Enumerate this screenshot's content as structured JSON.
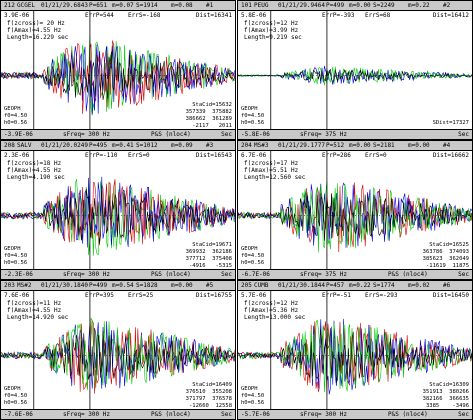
{
  "panels": [
    {
      "header": {
        "index": "212",
        "station": "GCGEL",
        "time": "01/21/29.6843",
        "p": "P=651",
        "m": "m=0.07",
        "s": "S=1914",
        "mag": "m=0.08",
        "num": "#1"
      },
      "amp_top": "3.9E-06",
      "err_p": "ErrP=544",
      "err_s": "ErrS=-168",
      "dist": "Dist=16341",
      "fz": "f(zcross)= 20 Hz",
      "fa": "f(Amax)=4.55 Hz",
      "len": "Length=16.229 sec",
      "geoph": "GEOPH",
      "f0": "f0=4.50",
      "h0": "h0=0.56",
      "stat_label": "StaCid=15632",
      "stat_rows": [
        "357339  375882",
        "386662  361289",
        "-2117   2011"
      ],
      "amp_bottom": "-3.9E-06",
      "sfreq": "sFreq= 300 Hz",
      "ps": "P&S (nloc4)",
      "sec": "Sec",
      "colors": [
        "#00cc00",
        "#d40000",
        "#0000dd",
        "#000000"
      ],
      "amplitude": 0.85
    },
    {
      "header": {
        "index": "101",
        "station": "PEUG",
        "time": "01/21/29.9464",
        "p": "P=499",
        "m": "m=0.00",
        "s": "S=2249",
        "mag": "m=0.22",
        "num": "#2"
      },
      "amp_top": "5.8E-06",
      "err_p": "ErrP=-393",
      "err_s": "ErrS=68",
      "dist": "Dist=16412",
      "fz": "f(zcross)=12 Hz",
      "fa": "f(Amax)=3.99 Hz",
      "len": "Length=9.219 sec",
      "geoph": "GEOPH",
      "f0": "f0=4.50",
      "h0": "h0=0.56",
      "stat_label": "SDist=17327",
      "stat_rows": [],
      "amp_bottom": "-5.8E-06",
      "sfreq": "sFreq= 375 Hz",
      "ps": "",
      "sec": "Sec",
      "colors": [
        "#0000dd",
        "#00cc00",
        "#000000"
      ],
      "amplitude": 0.2
    },
    {
      "header": {
        "index": "208",
        "station": "SALV",
        "time": "01/21/20.0249",
        "p": "P=495",
        "m": "m=0.41",
        "s": "S=1012",
        "mag": "m=0.09",
        "num": "#3"
      },
      "amp_top": "2.3E-06",
      "err_p": "ErrP=-110",
      "err_s": "ErrS=0",
      "dist": "Dist=16543",
      "fz": "f(zcross)=18 Hz",
      "fa": "f(Amax)=4.55 Hz",
      "len": "Length=4.190 sec",
      "geoph": "GEOPH",
      "f0": "f0=4.50",
      "h0": "h0=0.56",
      "stat_label": "StaCid=19671",
      "stat_rows": [
        "369932  362186",
        "377712  375408",
        "-4916   -5315"
      ],
      "amp_bottom": "-2.3E-06",
      "sfreq": "sFreq= 300 Hz",
      "ps": "P&S (nloc4)",
      "sec": "Sec",
      "colors": [
        "#00cc00",
        "#d40000",
        "#0000dd",
        "#000000"
      ],
      "amplitude": 0.9
    },
    {
      "header": {
        "index": "204",
        "station": "MS#3",
        "time": "01/21/29.1777",
        "p": "P=512",
        "m": "m=0.00",
        "s": "S=2181",
        "mag": "m=0.00",
        "num": "#4"
      },
      "amp_top": "6.7E-06",
      "err_p": "ErrP=286",
      "err_s": "ErrS=0",
      "dist": "Dist=16662",
      "fz": "f(zcross)=17 Hz",
      "fa": "f(Amax)=5.51 Hz",
      "len": "Length=12.560 sec",
      "geoph": "GEOPH",
      "f0": "f0=4.50",
      "h0": "h0=0.56",
      "stat_label": "StaCid=16525",
      "stat_rows": [
        "363786  374093",
        "385623  362049",
        "-11619  11875"
      ],
      "amp_bottom": "-6.7E-06",
      "sfreq": "sFreq= 375 Hz",
      "ps": "P&S (nloc4)",
      "sec": "Sec",
      "colors": [
        "#d40000",
        "#0000dd",
        "#00cc00",
        "#000000"
      ],
      "amplitude": 0.85
    },
    {
      "header": {
        "index": "203",
        "station": "MS#2",
        "time": "01/21/30.1840",
        "p": "P=499",
        "m": "m=0.54",
        "s": "S=1828",
        "mag": "m=0.00",
        "num": "#5"
      },
      "amp_top": "7.6E-06",
      "err_p": "ErrP=395",
      "err_s": "ErrS=25",
      "dist": "Dist=16755",
      "fz": "f(zcross)=11 Hz",
      "fa": "f(Amax)=4.55 Hz",
      "len": "Length=14.920 sec",
      "geoph": "GEOPH",
      "f0": "f0=4.50",
      "h0": "h0=0.56",
      "stat_label": "StaCid=16409",
      "stat_rows": [
        "376510  355208",
        "371797  376578",
        "-12660  12558"
      ],
      "amp_bottom": "-7.6E-06",
      "sfreq": "sFreq= 300 Hz",
      "ps": "P&S (nloc4)",
      "sec": "Sec",
      "colors": [
        "#d40000",
        "#0000dd",
        "#00cc00",
        "#000000"
      ],
      "amplitude": 0.85
    },
    {
      "header": {
        "index": "205",
        "station": "CUMB",
        "time": "01/21/30.1844",
        "p": "P=457",
        "m": "m=0.22",
        "s": "S=1774",
        "mag": "m=0.02",
        "num": "#6"
      },
      "amp_top": "5.7E-06",
      "err_p": "ErrP=-51",
      "err_s": "ErrS=-293",
      "dist": "Dist=16450",
      "fz": "f(zcross)=12 Hz",
      "fa": "f(Amax)=5.36 Hz",
      "len": "Length=13.000 sec",
      "geoph": "GEOPH",
      "f0": "f0=4.50",
      "h0": "h0=0.56",
      "stat_label": "StaCid=16309",
      "stat_rows": [
        "351913  380266",
        "382166  366635",
        "3385    -3496"
      ],
      "amp_bottom": "-5.7E-06",
      "sfreq": "sFreq= 300 Hz",
      "ps": "P&S (nloc4)",
      "sec": "Sec",
      "colors": [
        "#d40000",
        "#0000dd",
        "#00cc00",
        "#000000"
      ],
      "amplitude": 0.85
    }
  ]
}
